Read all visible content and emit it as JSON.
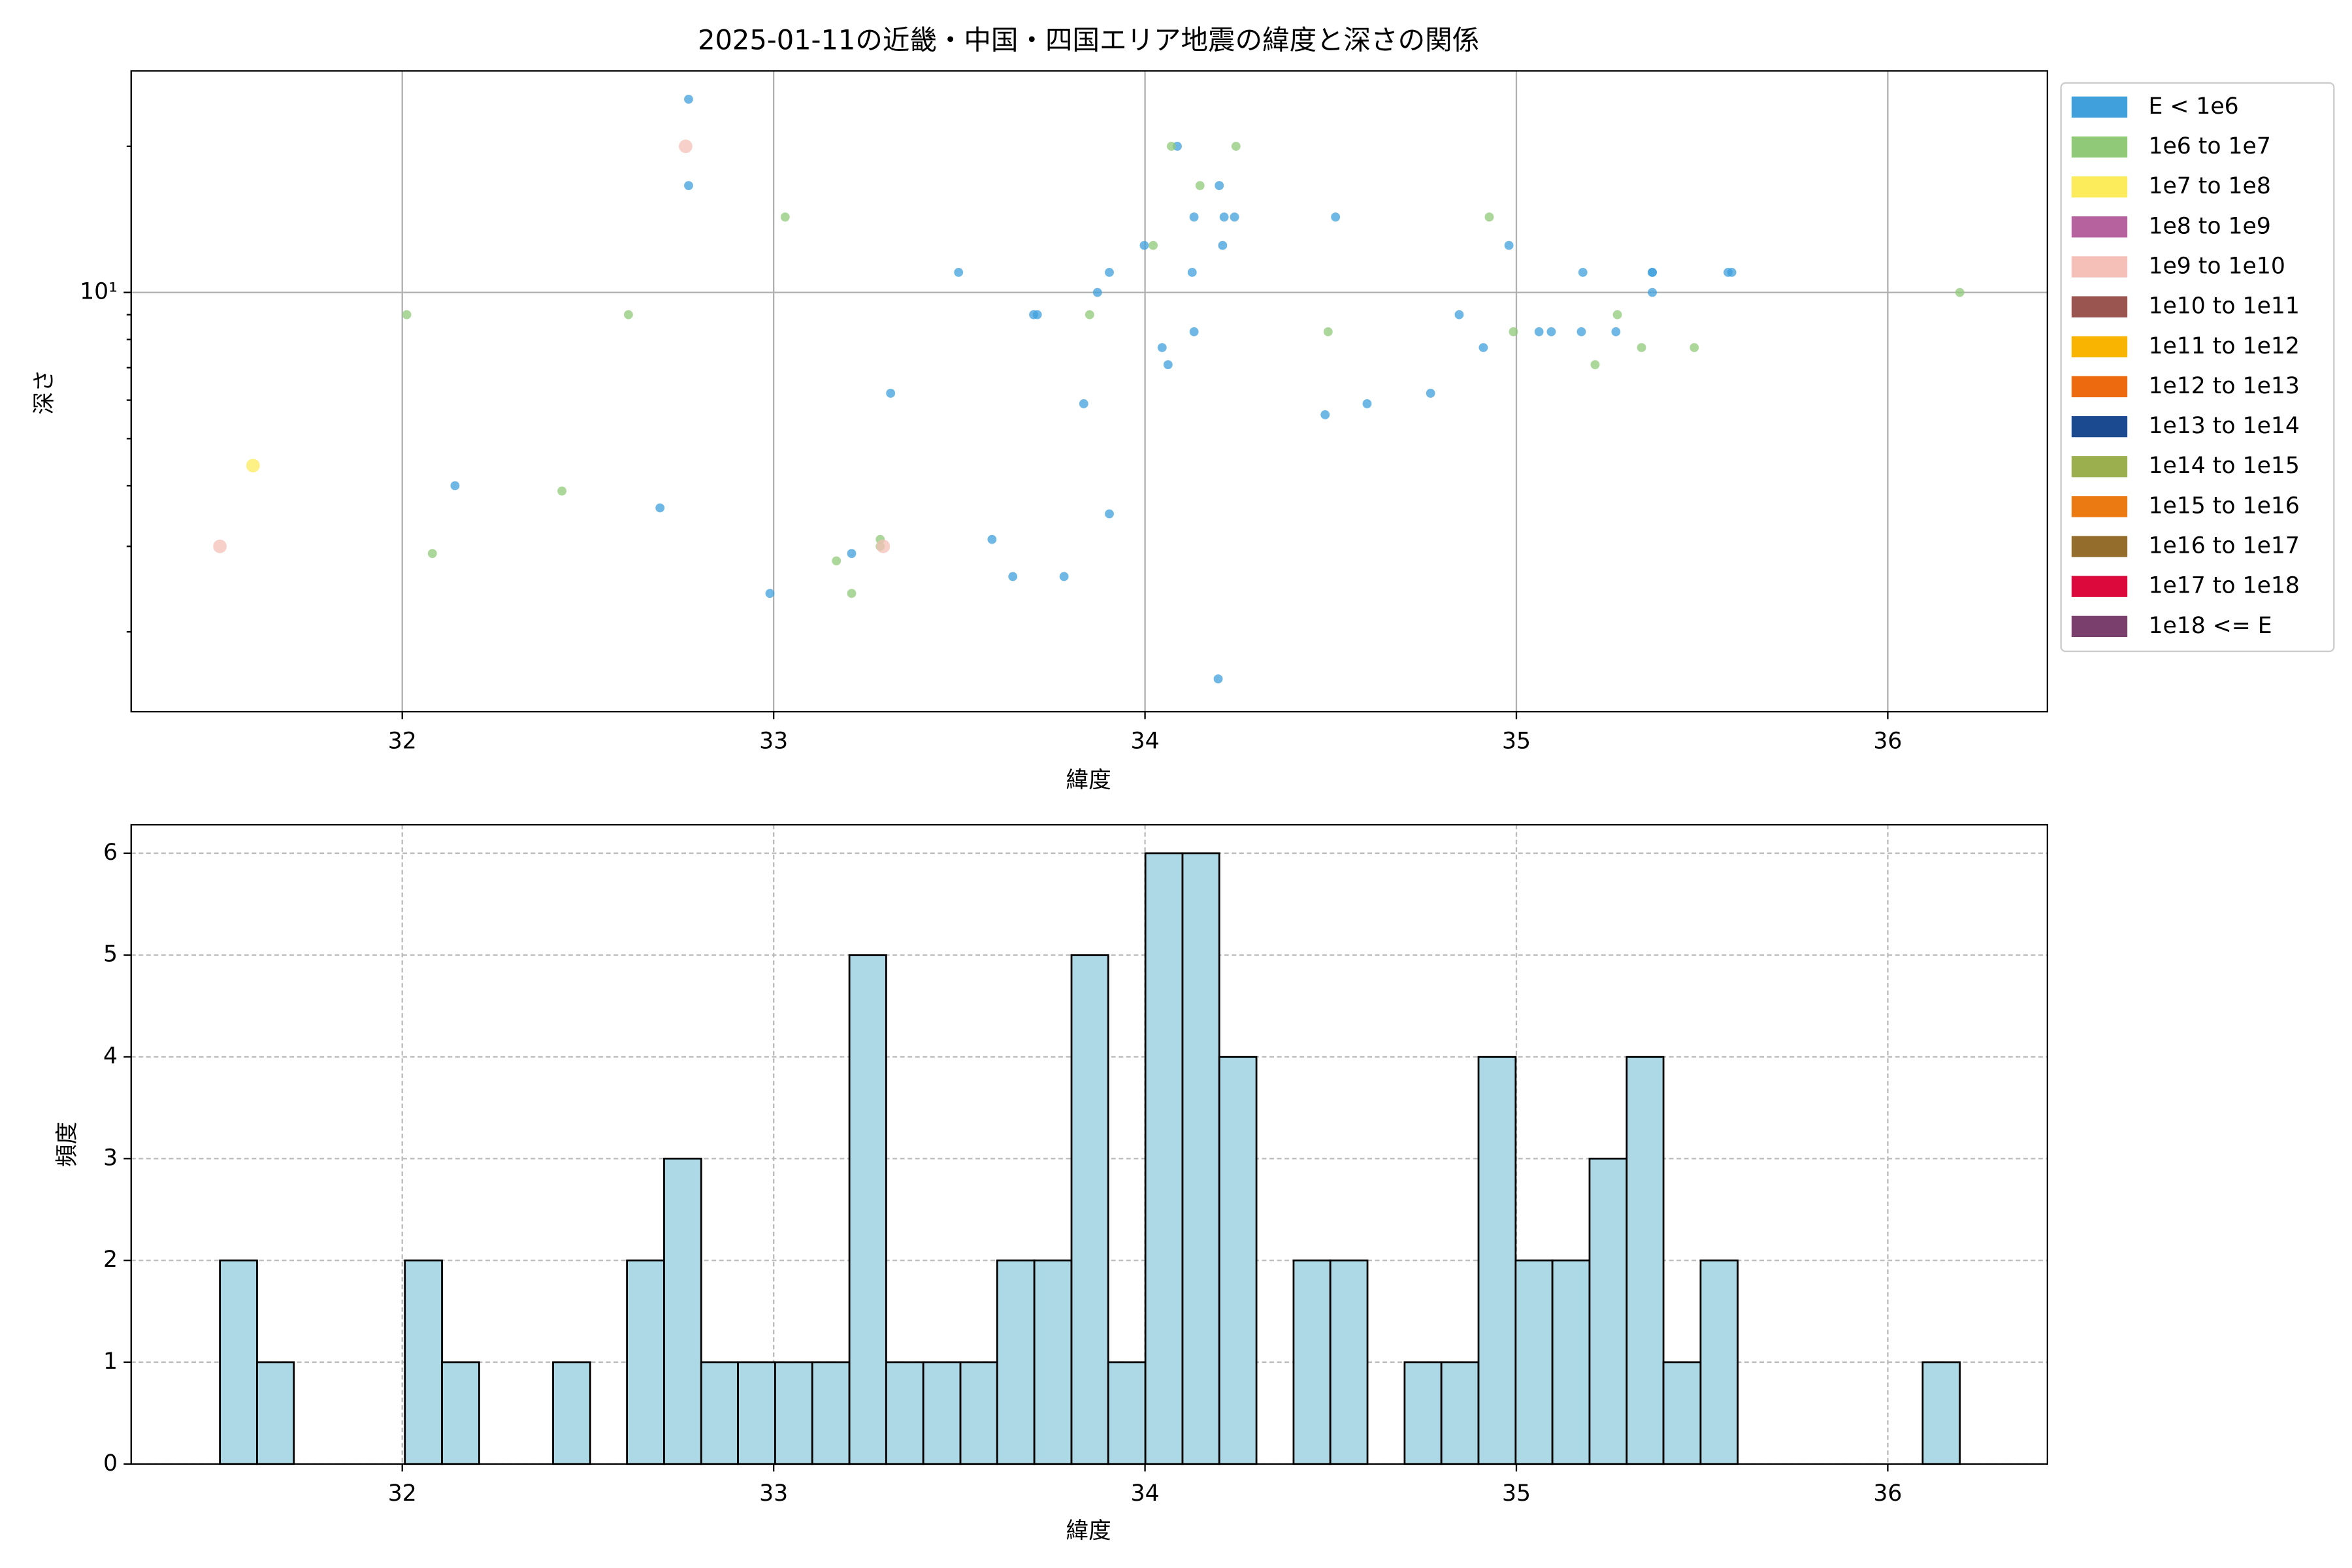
{
  "chart_data": [
    {
      "type": "scatter",
      "title": "2025-01-11の近畿・中国・四国エリア地震の緯度と深さの関係",
      "x_label": "緯度",
      "y_label": "深さ",
      "xlim": [
        31.27,
        36.43
      ],
      "xticks": [
        32,
        33,
        34,
        35,
        36
      ],
      "ylim": [
        1.37,
        28.6
      ],
      "y_log": true,
      "yticks": [
        {
          "value": 10,
          "label": "10¹"
        }
      ],
      "yminorticks": [
        2,
        3,
        4,
        5,
        6,
        7,
        8,
        9,
        20
      ],
      "grid": true,
      "grid_style": "solid",
      "legend": "outside right",
      "series": [
        {
          "name": "E < 1e6",
          "color": "#3fa0dc",
          "x": [
            32.771,
            32.771,
            34.087,
            34.2,
            34.132,
            34.213,
            34.241,
            34.513,
            33.998,
            34.209,
            34.98,
            33.498,
            33.904,
            34.127,
            35.179,
            35.366,
            35.366,
            35.57,
            35.58,
            33.872,
            35.366,
            33.7,
            33.71,
            34.846,
            34.132,
            35.061,
            35.094,
            35.175,
            35.268,
            34.046,
            34.911,
            34.062,
            33.315,
            34.769,
            33.835,
            34.598,
            34.485,
            32.142,
            32.694,
            33.904,
            33.588,
            33.21,
            33.644,
            33.782,
            32.99,
            34.197
          ],
          "y": [
            25,
            16.6,
            20,
            16.6,
            14.3,
            14.3,
            14.3,
            14.3,
            12.5,
            12.5,
            12.5,
            11,
            11,
            11,
            11,
            11,
            11,
            11,
            11,
            10,
            10,
            9,
            9,
            9,
            8.3,
            8.3,
            8.3,
            8.3,
            8.3,
            7.7,
            7.7,
            7.1,
            6.2,
            6.2,
            5.9,
            5.9,
            5.6,
            4.0,
            3.6,
            3.5,
            3.1,
            2.9,
            2.6,
            2.6,
            2.4,
            1.6
          ]
        },
        {
          "name": "1e6 to 1e7",
          "color": "#90c978",
          "x": [
            34.071,
            34.245,
            34.148,
            33.031,
            34.927,
            34.022,
            36.194,
            32.012,
            32.609,
            33.851,
            35.272,
            34.493,
            34.992,
            35.337,
            35.479,
            35.212,
            32.43,
            32.081,
            33.287,
            33.287,
            33.169,
            33.21
          ],
          "y": [
            20,
            20,
            16.6,
            14.3,
            14.3,
            12.5,
            10,
            9,
            9,
            9,
            9,
            8.3,
            8.3,
            7.7,
            7.7,
            7.1,
            3.9,
            2.9,
            3.1,
            3.0,
            2.8,
            2.4
          ]
        },
        {
          "name": "1e7 to 1e8",
          "color": "#fcec5c",
          "x": [
            31.598
          ],
          "y": [
            4.4
          ]
        },
        {
          "name": "1e8 to 1e9",
          "color": "#b5629e",
          "x": [],
          "y": []
        },
        {
          "name": "1e9 to 1e10",
          "color": "#f5c0b8",
          "x": [
            32.763,
            31.509,
            33.295
          ],
          "y": [
            20,
            3.0,
            3.0
          ]
        },
        {
          "name": "1e10 to 1e11",
          "color": "#9b5550",
          "x": [],
          "y": []
        },
        {
          "name": "1e11 to 1e12",
          "color": "#f8b400",
          "x": [],
          "y": []
        },
        {
          "name": "1e12 to 1e13",
          "color": "#ee6a0e",
          "x": [],
          "y": []
        },
        {
          "name": "1e13 to 1e14",
          "color": "#1c4a90",
          "x": [],
          "y": []
        },
        {
          "name": "1e14 to 1e15",
          "color": "#9caf4e",
          "x": [],
          "y": []
        },
        {
          "name": "1e15 to 1e16",
          "color": "#ec7a12",
          "x": [],
          "y": []
        },
        {
          "name": "1e16 to 1e17",
          "color": "#946c2c",
          "x": [],
          "y": []
        },
        {
          "name": "1e17 to 1e18",
          "color": "#dc0a3c",
          "x": [],
          "y": []
        },
        {
          "name": "1e18 <= E",
          "color": "#7a3f6d",
          "x": [],
          "y": []
        }
      ]
    },
    {
      "type": "histogram",
      "x_label": "緯度",
      "y_label": "頻度",
      "color": "#add8e6",
      "xlim": [
        31.27,
        36.43
      ],
      "xticks": [
        32,
        33,
        34,
        35,
        36
      ],
      "ylim": [
        0,
        6.28
      ],
      "yticks": [
        0,
        1,
        2,
        3,
        4,
        5,
        6
      ],
      "grid": true,
      "grid_style": "dashed",
      "bins": [
        31.509,
        31.609,
        31.708,
        31.808,
        31.908,
        32.007,
        32.107,
        32.207,
        32.306,
        32.406,
        32.506,
        32.605,
        32.705,
        32.805,
        32.904,
        33.004,
        33.104,
        33.204,
        33.303,
        33.403,
        33.503,
        33.602,
        33.702,
        33.802,
        33.901,
        34.001,
        34.101,
        34.2,
        34.3,
        34.4,
        34.499,
        34.599,
        34.699,
        34.798,
        34.898,
        34.998,
        35.097,
        35.197,
        35.297,
        35.396,
        35.496,
        35.596,
        35.695,
        35.795,
        35.895,
        35.994,
        36.094,
        36.194
      ],
      "values": [
        2,
        1,
        0,
        0,
        0,
        2,
        1,
        0,
        0,
        1,
        0,
        2,
        3,
        1,
        1,
        1,
        1,
        5,
        1,
        1,
        1,
        2,
        2,
        5,
        1,
        6,
        6,
        4,
        0,
        2,
        2,
        0,
        1,
        1,
        4,
        2,
        2,
        3,
        4,
        1,
        2,
        0,
        0,
        0,
        0,
        0,
        1
      ]
    }
  ]
}
